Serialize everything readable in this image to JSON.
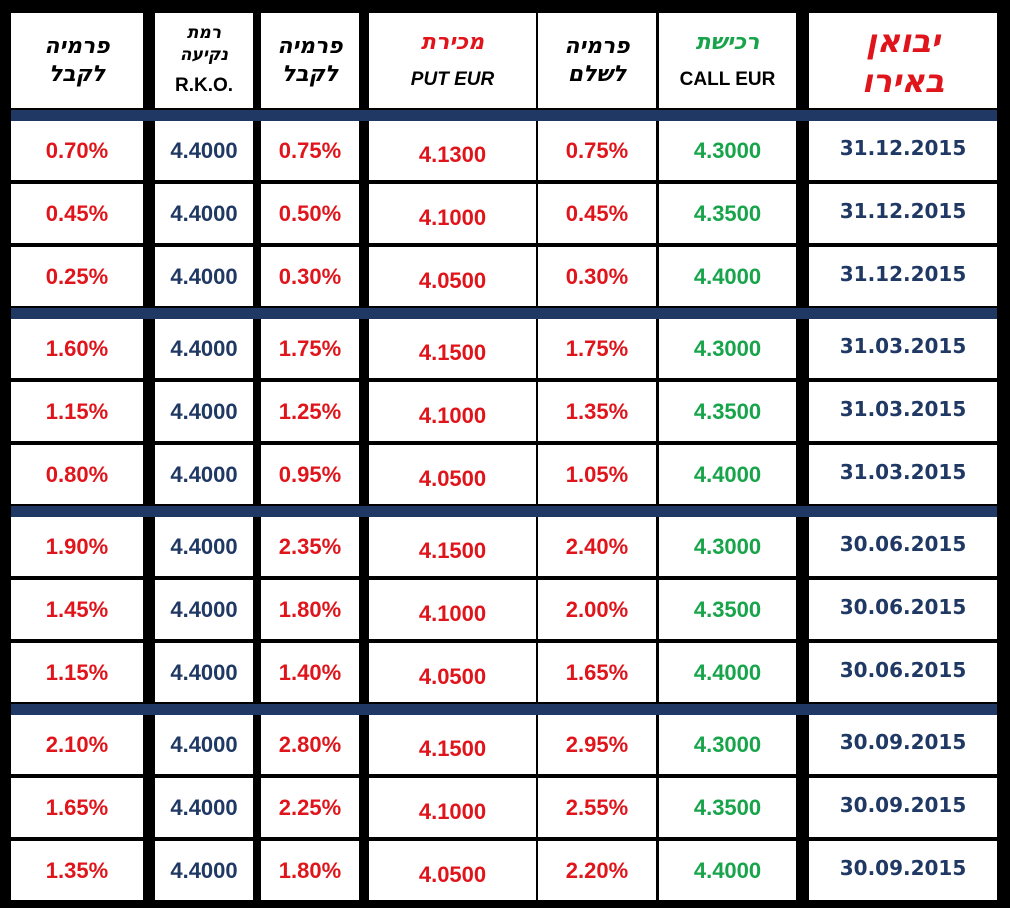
{
  "colors": {
    "red": "#e0151b",
    "navy": "#1f3864",
    "green": "#17a44a",
    "black": "#000000"
  },
  "headers": {
    "premium_receive_a": [
      "פרמיה",
      "לקבל"
    ],
    "barrier_level": [
      "רמת",
      "נקיעה",
      "R.K.O."
    ],
    "premium_receive_b": [
      "פרמיה",
      "לקבל"
    ],
    "put_sell": [
      "מכירת",
      "PUT EUR"
    ],
    "premium_pay": [
      "פרמיה",
      "לשלם"
    ],
    "call_buy": [
      "רכישת",
      "CALL EUR"
    ],
    "title": [
      "יבואן",
      "באירו"
    ]
  },
  "rows": [
    {
      "premium_receive_a": "0.70%",
      "barrier": "4.4000",
      "premium_receive_b": "0.75%",
      "put_strike": "4.1300",
      "premium_pay": "0.75%",
      "call_strike": "4.3000",
      "date": "31.12.2015"
    },
    {
      "premium_receive_a": "0.45%",
      "barrier": "4.4000",
      "premium_receive_b": "0.50%",
      "put_strike": "4.1000",
      "premium_pay": "0.45%",
      "call_strike": "4.3500",
      "date": "31.12.2015"
    },
    {
      "premium_receive_a": "0.25%",
      "barrier": "4.4000",
      "premium_receive_b": "0.30%",
      "put_strike": "4.0500",
      "premium_pay": "0.30%",
      "call_strike": "4.4000",
      "date": "31.12.2015"
    },
    {
      "premium_receive_a": "1.60%",
      "barrier": "4.4000",
      "premium_receive_b": "1.75%",
      "put_strike": "4.1500",
      "premium_pay": "1.75%",
      "call_strike": "4.3000",
      "date": "31.03.2015"
    },
    {
      "premium_receive_a": "1.15%",
      "barrier": "4.4000",
      "premium_receive_b": "1.25%",
      "put_strike": "4.1000",
      "premium_pay": "1.35%",
      "call_strike": "4.3500",
      "date": "31.03.2015"
    },
    {
      "premium_receive_a": "0.80%",
      "barrier": "4.4000",
      "premium_receive_b": "0.95%",
      "put_strike": "4.0500",
      "premium_pay": "1.05%",
      "call_strike": "4.4000",
      "date": "31.03.2015"
    },
    {
      "premium_receive_a": "1.90%",
      "barrier": "4.4000",
      "premium_receive_b": "2.35%",
      "put_strike": "4.1500",
      "premium_pay": "2.40%",
      "call_strike": "4.3000",
      "date": "30.06.2015"
    },
    {
      "premium_receive_a": "1.45%",
      "barrier": "4.4000",
      "premium_receive_b": "1.80%",
      "put_strike": "4.1000",
      "premium_pay": "2.00%",
      "call_strike": "4.3500",
      "date": "30.06.2015"
    },
    {
      "premium_receive_a": "1.15%",
      "barrier": "4.4000",
      "premium_receive_b": "1.40%",
      "put_strike": "4.0500",
      "premium_pay": "1.65%",
      "call_strike": "4.4000",
      "date": "30.06.2015"
    },
    {
      "premium_receive_a": "2.10%",
      "barrier": "4.4000",
      "premium_receive_b": "2.80%",
      "put_strike": "4.1500",
      "premium_pay": "2.95%",
      "call_strike": "4.3000",
      "date": "30.09.2015"
    },
    {
      "premium_receive_a": "1.65%",
      "barrier": "4.4000",
      "premium_receive_b": "2.25%",
      "put_strike": "4.1000",
      "premium_pay": "2.55%",
      "call_strike": "4.3500",
      "date": "30.09.2015"
    },
    {
      "premium_receive_a": "1.35%",
      "barrier": "4.4000",
      "premium_receive_b": "1.80%",
      "put_strike": "4.0500",
      "premium_pay": "2.20%",
      "call_strike": "4.4000",
      "date": "30.09.2015"
    }
  ]
}
